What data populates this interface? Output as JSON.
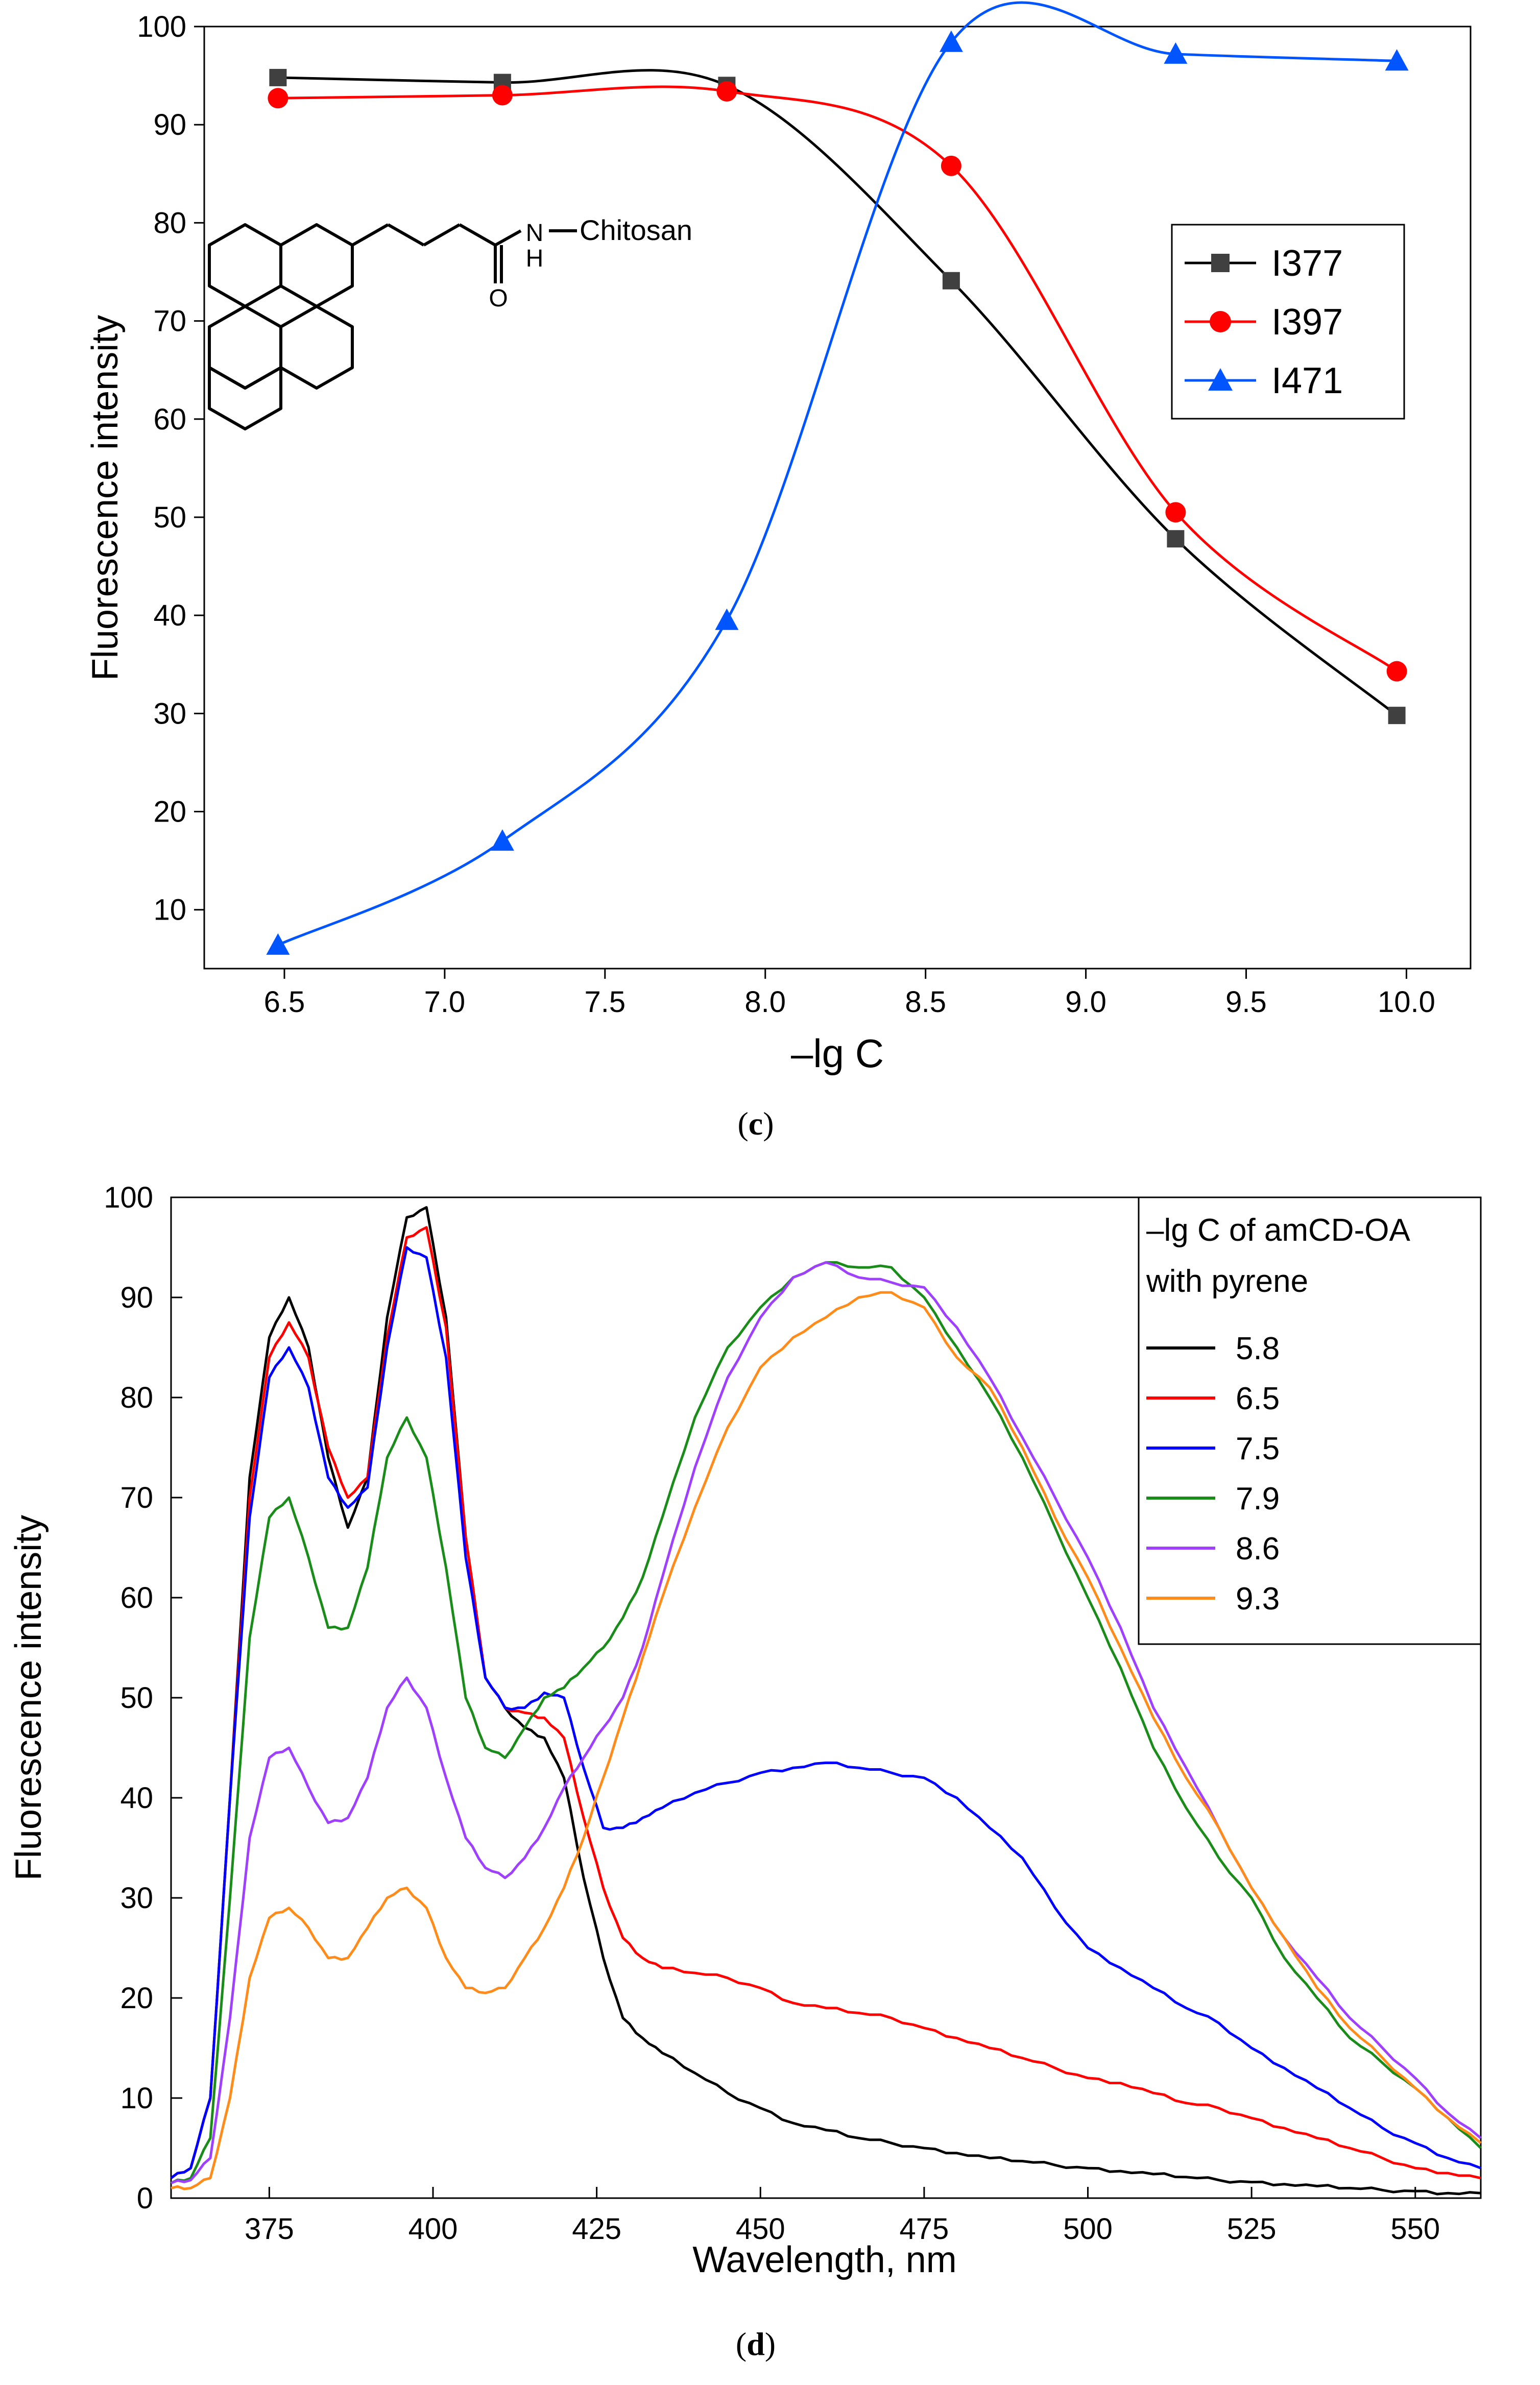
{
  "chart_data": [
    {
      "panel": "(c)",
      "panel_letter": "c",
      "type": "line",
      "xlabel": "–lg C",
      "ylabel": "Fluorescence intensity",
      "xlim": [
        6.25,
        10.2
      ],
      "ylim": [
        4,
        100
      ],
      "xticks": [
        6.5,
        7.0,
        7.5,
        8.0,
        8.5,
        9.0,
        9.5,
        10.0
      ],
      "xtick_labels": [
        "6.5",
        "7.0",
        "7.5",
        "8.0",
        "8.5",
        "9.0",
        "9.5",
        "10.0"
      ],
      "yticks": [
        10,
        20,
        30,
        40,
        50,
        60,
        70,
        80,
        90,
        100
      ],
      "ytick_labels": [
        "10",
        "20",
        "30",
        "40",
        "50",
        "60",
        "70",
        "80",
        "90",
        "100"
      ],
      "legend_position": "center-right",
      "grid": false,
      "structure_labels": {
        "amide_n": "N",
        "amide_h": "H",
        "carbonyl_o": "O",
        "substituent": "Chitosan"
      },
      "x": [
        6.48,
        7.18,
        7.88,
        8.58,
        9.28,
        9.97
      ],
      "series": [
        {
          "name": "I377",
          "color": "#000000",
          "marker": "square",
          "values": [
            94.8,
            94.3,
            94.0,
            74.1,
            47.8,
            29.8
          ]
        },
        {
          "name": "I397",
          "color": "#ff0000",
          "marker": "circle",
          "values": [
            92.7,
            93.0,
            93.4,
            85.8,
            50.5,
            34.3
          ]
        },
        {
          "name": "I471",
          "color": "#0055ff",
          "marker": "triangle",
          "values": [
            6.4,
            17.0,
            39.5,
            98.4,
            97.2,
            96.5
          ]
        }
      ]
    },
    {
      "panel": "(d)",
      "panel_letter": "d",
      "type": "line",
      "xlabel": "Wavelength, nm",
      "ylabel": "Fluorescence intensity",
      "xlim": [
        360,
        560
      ],
      "ylim": [
        0,
        100
      ],
      "xticks": [
        375,
        400,
        425,
        450,
        475,
        500,
        525,
        550
      ],
      "xtick_labels": [
        "375",
        "400",
        "425",
        "450",
        "475",
        "500",
        "525",
        "550"
      ],
      "yticks": [
        0,
        10,
        20,
        30,
        40,
        50,
        60,
        70,
        80,
        90,
        100
      ],
      "ytick_labels": [
        "0",
        "10",
        "20",
        "30",
        "40",
        "50",
        "60",
        "70",
        "80",
        "90",
        "100"
      ],
      "legend_title": [
        "–lg C of amCD-OA",
        "with pyrene"
      ],
      "legend_position": "top-right",
      "grid": false,
      "x": [
        360,
        363,
        366,
        369,
        372,
        375,
        378,
        381,
        384,
        387,
        390,
        393,
        396,
        399,
        402,
        405,
        408,
        411,
        414,
        417,
        420,
        423,
        426,
        429,
        432,
        435,
        440,
        445,
        450,
        455,
        460,
        465,
        470,
        475,
        480,
        485,
        490,
        495,
        500,
        505,
        510,
        515,
        520,
        525,
        530,
        535,
        540,
        545,
        550,
        555,
        560
      ],
      "series": [
        {
          "name": "5.8",
          "color": "#000000",
          "values": [
            2.0,
            3.0,
            10.0,
            40.0,
            72.0,
            86.0,
            90.0,
            85.0,
            74.0,
            67.0,
            72.0,
            88.0,
            98.0,
            99.0,
            88.0,
            66.0,
            52.0,
            49.0,
            47.0,
            46.0,
            42.0,
            32.0,
            24.0,
            18.0,
            16.0,
            14.5,
            12.5,
            10.5,
            9.0,
            7.5,
            6.8,
            6.0,
            5.5,
            5.0,
            4.5,
            4.0,
            3.7,
            3.3,
            3.0,
            2.7,
            2.4,
            2.1,
            1.8,
            1.6,
            1.4,
            1.2,
            1.0,
            0.8,
            0.7,
            0.5,
            0.5
          ]
        },
        {
          "name": "6.5",
          "color": "#ff0000",
          "values": [
            2.0,
            3.0,
            10.0,
            40.0,
            70.0,
            84.0,
            87.5,
            84.0,
            75.0,
            70.0,
            72.0,
            86.0,
            96.0,
            97.0,
            87.0,
            66.0,
            52.0,
            49.0,
            48.5,
            48.0,
            46.0,
            38.0,
            31.0,
            26.0,
            24.0,
            23.0,
            22.5,
            22.0,
            21.0,
            19.5,
            19.0,
            18.5,
            18.0,
            17.0,
            16.0,
            15.0,
            14.0,
            13.0,
            12.0,
            11.5,
            10.5,
            9.5,
            9.0,
            8.0,
            7.0,
            6.0,
            5.0,
            4.0,
            3.0,
            2.5,
            2.0
          ]
        },
        {
          "name": "7.5",
          "color": "#0000ff",
          "values": [
            2.0,
            3.0,
            10.0,
            40.0,
            68.0,
            82.0,
            85.0,
            81.0,
            72.0,
            69.0,
            71.0,
            85.0,
            95.0,
            94.0,
            84.0,
            64.0,
            52.0,
            49.0,
            49.0,
            50.5,
            50.0,
            43.0,
            37.0,
            37.0,
            38.0,
            39.0,
            40.5,
            41.5,
            42.5,
            43.0,
            43.5,
            43.0,
            42.5,
            42.0,
            40.0,
            37.0,
            34.0,
            29.0,
            25.0,
            23.0,
            21.0,
            19.0,
            17.5,
            15.0,
            13.0,
            11.0,
            9.0,
            7.0,
            5.5,
            4.0,
            3.0
          ]
        },
        {
          "name": "7.9",
          "color": "#1a8c1a",
          "values": [
            1.5,
            2.0,
            6.0,
            30.0,
            56.0,
            68.0,
            70.0,
            64.0,
            57.0,
            57.0,
            63.0,
            74.0,
            78.0,
            74.0,
            63.0,
            50.0,
            45.0,
            44.0,
            47.0,
            50.0,
            51.0,
            53.0,
            55.0,
            58.0,
            62.0,
            68.0,
            78.0,
            85.0,
            89.0,
            92.0,
            93.5,
            93.0,
            93.0,
            90.0,
            85.0,
            80.0,
            74.0,
            67.0,
            60.0,
            53.0,
            45.0,
            39.0,
            34.0,
            30.0,
            24.0,
            20.0,
            16.0,
            13.5,
            11.0,
            8.0,
            5.0
          ]
        },
        {
          "name": "8.6",
          "color": "#a040ff",
          "values": [
            1.5,
            1.8,
            4.0,
            18.0,
            36.0,
            44.0,
            45.0,
            41.0,
            37.5,
            38.0,
            42.0,
            49.0,
            52.0,
            49.0,
            42.0,
            36.0,
            33.0,
            32.0,
            34.0,
            37.0,
            41.0,
            44.0,
            47.0,
            50.0,
            55.0,
            62.0,
            73.0,
            82.0,
            88.0,
            92.0,
            93.5,
            92.0,
            91.5,
            91.0,
            87.0,
            82.0,
            76.0,
            70.0,
            64.0,
            57.0,
            49.0,
            43.0,
            37.0,
            31.0,
            26.0,
            22.0,
            18.0,
            15.0,
            12.0,
            8.5,
            6.0
          ]
        },
        {
          "name": "9.3",
          "color": "#ff8c1a",
          "values": [
            1.0,
            1.0,
            2.0,
            10.0,
            22.0,
            28.0,
            29.0,
            27.0,
            24.0,
            24.0,
            27.0,
            30.0,
            31.0,
            29.0,
            24.0,
            21.0,
            20.5,
            21.0,
            24.0,
            27.0,
            31.0,
            36.0,
            42.0,
            48.0,
            54.0,
            60.0,
            69.0,
            77.0,
            83.0,
            86.0,
            88.0,
            90.0,
            90.5,
            89.0,
            84.0,
            81.0,
            75.0,
            68.0,
            62.0,
            55.0,
            48.0,
            42.0,
            37.0,
            31.0,
            26.0,
            21.0,
            17.0,
            14.0,
            11.0,
            8.0,
            5.5
          ]
        }
      ]
    }
  ]
}
